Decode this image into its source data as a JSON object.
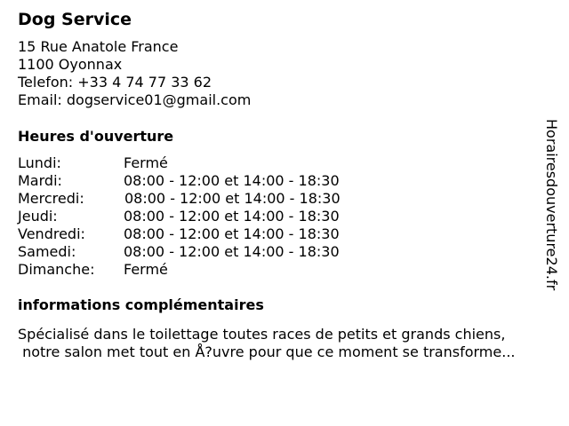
{
  "business": {
    "name": "Dog Service",
    "address_line1": "15 Rue Anatole France",
    "address_line2": "1100 Oyonnax",
    "phone": "Telefon: +33 4 74 77 33 62",
    "email": "Email: dogservice01@gmail.com"
  },
  "hours": {
    "heading": "Heures d'ouverture",
    "rows": [
      {
        "day": "Lundi:",
        "time": "Fermé"
      },
      {
        "day": "Mardi:",
        "time": "08:00 - 12:00 et 14:00 - 18:30"
      },
      {
        "day": "Mercredi:",
        "time": "08:00 - 12:00 et 14:00 - 18:30"
      },
      {
        "day": "Jeudi:",
        "time": "08:00 - 12:00 et 14:00 - 18:30"
      },
      {
        "day": "Vendredi:",
        "time": "08:00 - 12:00 et 14:00 - 18:30"
      },
      {
        "day": "Samedi:",
        "time": "08:00 - 12:00 et 14:00 - 18:30"
      },
      {
        "day": "Dimanche:",
        "time": "Fermé"
      }
    ]
  },
  "info": {
    "heading": "informations complémentaires",
    "line1": "Spécialisé dans le toilettage toutes races de petits et grands chiens,",
    "line2": " notre salon met tout en Å?uvre pour que ce moment se transforme..."
  },
  "watermark": "Horairesdouverture24.fr"
}
